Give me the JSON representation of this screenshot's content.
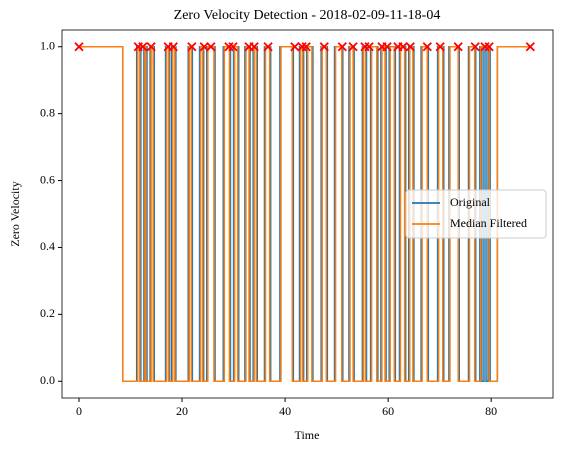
{
  "chart_data": {
    "type": "line",
    "title": "Zero Velocity Detection - 2018-02-09-11-18-04",
    "x_label": "Time",
    "y_label": "Zero Velocity",
    "xlim": [
      -3.3,
      92
    ],
    "ylim": [
      -0.05,
      1.05
    ],
    "xticks": [
      0,
      20,
      40,
      60,
      80
    ],
    "yticks": [
      {
        "value": 0,
        "label": "0.0"
      },
      {
        "value": 0.2,
        "label": "0.2"
      },
      {
        "value": 0.4,
        "label": "0.4"
      },
      {
        "value": 0.6,
        "label": "0.6"
      },
      {
        "value": 0.8,
        "label": "0.8"
      },
      {
        "value": 1,
        "label": "1.0"
      }
    ],
    "grid": false,
    "step": "post",
    "legend_position": "center right",
    "series": [
      {
        "name": "Original",
        "color": "#1f77b4",
        "x": [
          0,
          8.5,
          11.2,
          12.0,
          12.6,
          13.2,
          13.8,
          14.6,
          16.8,
          17.6,
          18.0,
          18.8,
          21.2,
          22.0,
          23.4,
          24.2,
          24.8,
          26.4,
          28.0,
          29.4,
          30.0,
          31.0,
          32.2,
          33.2,
          33.8,
          34.6,
          36.0,
          37.2,
          39.0,
          41.6,
          42.8,
          43.6,
          44.2,
          45.4,
          47.0,
          48.2,
          49.6,
          51.2,
          52.4,
          53.4,
          55.0,
          55.8,
          56.6,
          58.0,
          58.6,
          59.6,
          60.2,
          61.4,
          62.2,
          63.4,
          64.0,
          65.0,
          66.4,
          67.8,
          69.6,
          70.8,
          71.8,
          73.8,
          75.6,
          77.0,
          77.8,
          78.2,
          78.6,
          79.0,
          79.4,
          79.8,
          81.2,
          87.6
        ],
        "values": [
          1,
          0,
          1,
          0,
          1,
          0,
          1,
          0,
          1,
          0,
          1,
          0,
          1,
          0,
          1,
          0,
          1,
          0,
          1,
          0,
          1,
          0,
          1,
          0,
          1,
          0,
          1,
          0,
          1,
          0,
          1,
          0,
          1,
          0,
          1,
          0,
          1,
          0,
          1,
          0,
          1,
          0,
          1,
          0,
          1,
          0,
          1,
          0,
          1,
          0,
          1,
          0,
          1,
          0,
          1,
          0,
          1,
          0,
          1,
          0,
          1,
          0,
          1,
          0,
          1,
          0,
          1,
          1
        ]
      },
      {
        "name": "Median Filtered",
        "color": "#ff7f0e",
        "x": [
          0,
          8.5,
          11.4,
          11.8,
          12.8,
          13.0,
          14.0,
          14.4,
          17.0,
          17.4,
          18.2,
          18.6,
          21.4,
          21.8,
          23.6,
          24.0,
          25.0,
          26.2,
          28.2,
          29.2,
          30.2,
          30.8,
          32.4,
          33.0,
          34.0,
          34.4,
          36.2,
          37.0,
          39.2,
          41.4,
          43.0,
          43.4,
          44.4,
          45.2,
          47.2,
          48.0,
          49.8,
          51.0,
          52.6,
          53.2,
          55.2,
          55.6,
          56.8,
          57.8,
          58.8,
          59.4,
          60.4,
          61.2,
          62.4,
          63.2,
          64.2,
          64.8,
          66.6,
          67.6,
          69.8,
          70.6,
          72.0,
          73.6,
          75.8,
          76.8,
          78.0,
          79.6,
          81.2,
          87.6
        ],
        "values": [
          1,
          0,
          1,
          0,
          1,
          0,
          1,
          0,
          1,
          0,
          1,
          0,
          1,
          0,
          1,
          0,
          1,
          0,
          1,
          0,
          1,
          0,
          1,
          0,
          1,
          0,
          1,
          0,
          1,
          0,
          1,
          0,
          1,
          0,
          1,
          0,
          1,
          0,
          1,
          0,
          1,
          0,
          1,
          0,
          1,
          0,
          1,
          0,
          1,
          0,
          1,
          0,
          1,
          0,
          1,
          0,
          1,
          0,
          1,
          0,
          1,
          0,
          1,
          1
        ]
      }
    ],
    "markers": {
      "color": "#ff0000",
      "x": [
        0,
        11.5,
        12.4,
        14.0,
        17.3,
        18.3,
        21.9,
        24.3,
        25.6,
        29.1,
        29.9,
        33.0,
        34.0,
        36.7,
        41.9,
        43.3,
        44.1,
        47.6,
        51.1,
        53.2,
        55.5,
        56.3,
        58.8,
        59.8,
        61.9,
        62.9,
        64.3,
        67.6,
        70.1,
        73.6,
        76.9,
        78.8,
        79.6,
        87.6
      ],
      "values": [
        1,
        1,
        1,
        1,
        1,
        1,
        1,
        1,
        1,
        1,
        1,
        1,
        1,
        1,
        1,
        1,
        1,
        1,
        1,
        1,
        1,
        1,
        1,
        1,
        1,
        1,
        1,
        1,
        1,
        1,
        1,
        1,
        1,
        1
      ]
    }
  }
}
